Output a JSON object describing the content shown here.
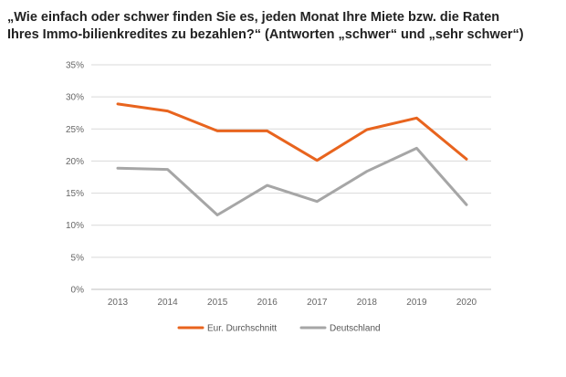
{
  "title_lines": [
    "„Wie einfach oder schwer finden Sie es, jeden Monat Ihre Miete bzw. die Raten",
    "Ihres Immo-bilienkredites zu bezahlen?“ (Antworten „schwer“ und „sehr schwer“)"
  ],
  "chart_data": {
    "type": "line",
    "title": "„Wie einfach oder schwer finden Sie es, jeden Monat Ihre Miete bzw. die Raten Ihres Immo-bilienkredites zu bezahlen?“ (Antworten „schwer“ und „sehr schwer“)",
    "x": [
      "2013",
      "2014",
      "2015",
      "2016",
      "2017",
      "2018",
      "2019",
      "2020"
    ],
    "series": [
      {
        "name": "Eur. Durchschnitt",
        "color": "#e8641e",
        "values": [
          28.9,
          27.8,
          24.7,
          24.7,
          20.1,
          24.9,
          26.7,
          20.3
        ]
      },
      {
        "name": "Deutschland",
        "color": "#a6a6a6",
        "values": [
          18.9,
          18.7,
          11.6,
          16.2,
          13.7,
          18.4,
          22.0,
          13.2
        ]
      }
    ],
    "y_ticks": [
      "0%",
      "5%",
      "10%",
      "15%",
      "20%",
      "25%",
      "30%",
      "35%"
    ],
    "ylim": [
      0,
      35
    ],
    "y_unit": "%",
    "xlabel": "",
    "ylabel": "",
    "grid": true,
    "legend_position": "bottom"
  }
}
